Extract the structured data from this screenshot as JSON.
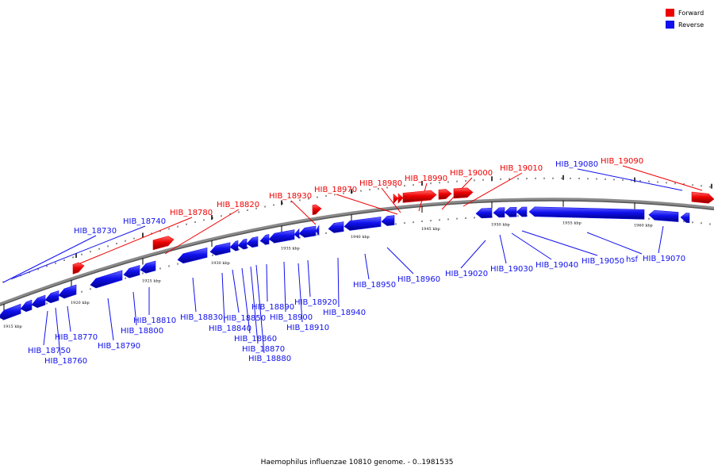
{
  "caption": "Haemophilus influenzae 10810 genome. - 0..1981535",
  "colors": {
    "forward": "#ee0000",
    "reverse": "#1010ee",
    "backbone": "#8a8a8a"
  },
  "legend": [
    {
      "label": "Forward",
      "color": "#ee0000"
    },
    {
      "label": "Reverse",
      "color": "#1010ee"
    }
  ],
  "ticks": [
    "1915 kbp",
    "1920 kbp",
    "1925 kbp",
    "1930 kbp",
    "1935 kbp",
    "1940 kbp",
    "1945 kbp",
    "1950 kbp",
    "1955 kbp",
    "1960 kbp"
  ],
  "genes": [
    {
      "label": "HIB_18730",
      "strand": "reverse"
    },
    {
      "label": "HIB_18740",
      "strand": "reverse"
    },
    {
      "label": "HIB_18750",
      "strand": "reverse"
    },
    {
      "label": "HIB_18760",
      "strand": "reverse"
    },
    {
      "label": "HIB_18770",
      "strand": "reverse"
    },
    {
      "label": "HIB_18780",
      "strand": "forward"
    },
    {
      "label": "HIB_18790",
      "strand": "reverse"
    },
    {
      "label": "HIB_18800",
      "strand": "reverse"
    },
    {
      "label": "HIB_18810",
      "strand": "reverse"
    },
    {
      "label": "HIB_18820",
      "strand": "forward"
    },
    {
      "label": "HIB_18830",
      "strand": "reverse"
    },
    {
      "label": "HIB_18840",
      "strand": "reverse"
    },
    {
      "label": "HIB_18850",
      "strand": "reverse"
    },
    {
      "label": "HIB_18860",
      "strand": "reverse"
    },
    {
      "label": "HIB_18870",
      "strand": "reverse"
    },
    {
      "label": "HIB_18880",
      "strand": "reverse"
    },
    {
      "label": "HIB_18890",
      "strand": "reverse"
    },
    {
      "label": "HIB_18900",
      "strand": "reverse"
    },
    {
      "label": "HIB_18910",
      "strand": "reverse"
    },
    {
      "label": "HIB_18920",
      "strand": "reverse"
    },
    {
      "label": "HIB_18930",
      "strand": "forward"
    },
    {
      "label": "HIB_18940",
      "strand": "reverse"
    },
    {
      "label": "HIB_18950",
      "strand": "reverse"
    },
    {
      "label": "HIB_18960",
      "strand": "reverse"
    },
    {
      "label": "HIB_18970",
      "strand": "forward"
    },
    {
      "label": "HIB_18980",
      "strand": "forward"
    },
    {
      "label": "HIB_18990",
      "strand": "forward"
    },
    {
      "label": "HIB_19000",
      "strand": "forward"
    },
    {
      "label": "HIB_19010",
      "strand": "forward"
    },
    {
      "label": "HIB_19020",
      "strand": "reverse"
    },
    {
      "label": "HIB_19030",
      "strand": "reverse"
    },
    {
      "label": "HIB_19040",
      "strand": "reverse"
    },
    {
      "label": "HIB_19050",
      "strand": "reverse"
    },
    {
      "label": "hsf",
      "strand": "reverse"
    },
    {
      "label": "HIB_19070",
      "strand": "reverse"
    },
    {
      "label": "HIB_19080",
      "strand": "reverse"
    },
    {
      "label": "HIB_19090",
      "strand": "forward"
    }
  ]
}
